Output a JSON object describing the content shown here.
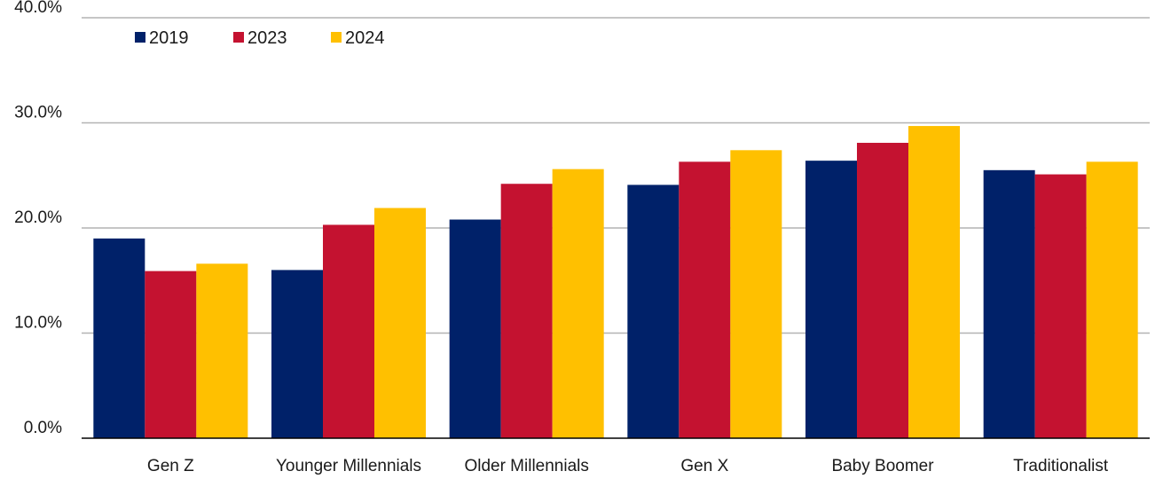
{
  "chart_data": {
    "type": "bar",
    "title": "",
    "xlabel": "",
    "ylabel": "",
    "categories": [
      "Gen Z",
      "Younger Millennials",
      "Older Millennials",
      "Gen X",
      "Baby Boomer",
      "Traditionalist"
    ],
    "series": [
      {
        "name": "2019",
        "color": "#002169",
        "values": [
          19.0,
          16.0,
          20.8,
          24.1,
          26.4,
          25.5
        ]
      },
      {
        "name": "2023",
        "color": "#C41230",
        "values": [
          15.9,
          20.3,
          24.2,
          26.3,
          28.1,
          25.1
        ]
      },
      {
        "name": "2024",
        "color": "#FFC000",
        "values": [
          16.6,
          21.9,
          25.6,
          27.4,
          29.7,
          26.3
        ]
      }
    ],
    "ylim": [
      0,
      40
    ],
    "y_ticks": [
      "0.0%",
      "10.0%",
      "20.0%",
      "30.0%",
      "40.0%"
    ],
    "grid": true,
    "legend_position": "top-left"
  }
}
